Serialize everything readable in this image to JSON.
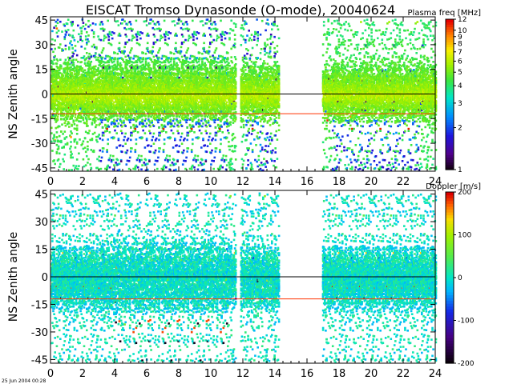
{
  "title": "EISCAT Tromso Dynasonde (O-mode),  20040624",
  "timestamp": "25 Jun 2004 00:28",
  "colors": {
    "zero_line": "#000000",
    "ref_line": "#ff3300",
    "axis": "#000000"
  },
  "chart_data": [
    {
      "type": "heatmap",
      "panel": "top",
      "xlabel": "",
      "ylabel": "NS Zenith angle",
      "xlim": [
        0,
        24
      ],
      "ylim": [
        -47,
        47
      ],
      "xticks": [
        0,
        2,
        4,
        6,
        8,
        10,
        12,
        14,
        16,
        18,
        20,
        22,
        24
      ],
      "yticks": [
        -45,
        -30,
        -15,
        0,
        15,
        30,
        45
      ],
      "hlines": [
        {
          "y": 0,
          "color": "#000000"
        },
        {
          "y": -12,
          "color": "#ff3300"
        }
      ],
      "data_gaps_hours": [
        [
          11.5,
          11.8
        ],
        [
          14.2,
          16.9
        ]
      ],
      "colorbar": {
        "title": "Plasma freq [MHz]",
        "scale": "log",
        "range": [
          1,
          12
        ],
        "ticks": [
          1,
          2,
          3,
          4,
          5,
          6,
          7,
          8,
          9,
          10,
          12
        ],
        "tick_labels": [
          "1",
          "2",
          "3",
          "4",
          "5",
          "6",
          "7",
          "8",
          "9",
          "10",
          "12"
        ]
      }
    },
    {
      "type": "heatmap",
      "panel": "bottom",
      "xlabel": "",
      "ylabel": "NS Zenith angle",
      "xlim": [
        0,
        24
      ],
      "ylim": [
        -47,
        47
      ],
      "xticks": [
        0,
        2,
        4,
        6,
        8,
        10,
        12,
        14,
        16,
        18,
        20,
        22,
        24
      ],
      "yticks": [
        -45,
        -30,
        -15,
        0,
        15,
        30,
        45
      ],
      "hlines": [
        {
          "y": 0,
          "color": "#000000"
        },
        {
          "y": -12,
          "color": "#ff3300"
        }
      ],
      "data_gaps_hours": [
        [
          11.5,
          11.8
        ],
        [
          14.2,
          16.9
        ]
      ],
      "colorbar": {
        "title": "Doppler [m/s]",
        "scale": "linear",
        "range": [
          -200,
          200
        ],
        "ticks": [
          -200,
          -100,
          0,
          100,
          200
        ],
        "tick_labels": [
          "-200",
          "-100",
          "0",
          "100",
          "200"
        ]
      }
    }
  ]
}
